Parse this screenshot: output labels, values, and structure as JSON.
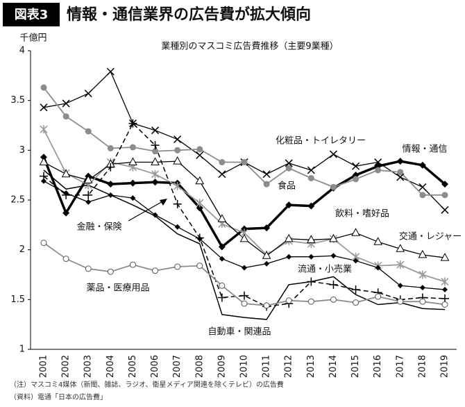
{
  "chart_data": {
    "type": "line",
    "figure_label": "図表3",
    "title": "情報・通信業界の広告費が拡大傾向",
    "subtitle": "業種別のマスコミ広告費推移（主要9業種）",
    "y_label": "千億円",
    "notes": [
      "（注）マスコミ4媒体（新聞、雑誌、ラジオ、衛星メディア関連を除くテレビ）の広告費",
      "（資料）電通「日本の広告費」"
    ],
    "categories": [
      "2001",
      "2002",
      "2003",
      "2004",
      "2005",
      "2006",
      "2007",
      "2008",
      "2009",
      "2010",
      "2011",
      "2012",
      "2013",
      "2014",
      "2015",
      "2016",
      "2017",
      "2018",
      "2019"
    ],
    "ylim": [
      1,
      4
    ],
    "yticks": [
      1,
      1.5,
      2,
      2.5,
      3,
      3.5,
      4
    ],
    "series": [
      {
        "name": "情報・通信",
        "color": "#000000",
        "marker": "diamond",
        "line_width": 3.5,
        "dashed": false,
        "values": [
          2.93,
          2.37,
          2.74,
          2.66,
          2.67,
          2.68,
          2.67,
          2.42,
          2.03,
          2.21,
          2.22,
          2.45,
          2.44,
          2.62,
          2.75,
          2.84,
          2.89,
          2.85,
          2.66
        ]
      },
      {
        "name": "化粧品・トイレタリー",
        "color": "#000000",
        "marker": "x",
        "line_width": 1.3,
        "dashed": false,
        "values": [
          3.43,
          3.47,
          3.57,
          3.79,
          3.27,
          3.2,
          3.11,
          2.95,
          2.76,
          2.88,
          2.76,
          2.87,
          2.8,
          2.96,
          2.84,
          2.88,
          2.73,
          2.63,
          2.4
        ]
      },
      {
        "name": "食品",
        "color": "#8c8c8c",
        "marker": "circle",
        "line_width": 1.8,
        "dashed": false,
        "values": [
          3.63,
          3.34,
          3.19,
          3.02,
          3.03,
          2.99,
          3.0,
          3.01,
          2.88,
          2.88,
          2.66,
          2.82,
          2.72,
          2.63,
          2.71,
          2.8,
          2.78,
          2.55,
          2.55
        ]
      },
      {
        "name": "飲料・嗜好品",
        "color": "#9a9a9a",
        "marker": "star",
        "line_width": 1.8,
        "dashed": false,
        "values": [
          3.21,
          2.77,
          2.65,
          2.88,
          2.83,
          2.76,
          2.64,
          2.47,
          2.26,
          2.17,
          1.95,
          2.09,
          2.06,
          2.11,
          1.93,
          1.84,
          1.85,
          1.75,
          1.68
        ]
      },
      {
        "name": "交通・レジャー",
        "color": "#000000",
        "marker": "triangle",
        "line_width": 1.3,
        "dashed": false,
        "values": [
          2.88,
          2.76,
          2.7,
          2.86,
          2.88,
          2.88,
          2.89,
          2.69,
          2.31,
          2.11,
          1.94,
          2.11,
          2.1,
          2.11,
          2.17,
          2.08,
          2.01,
          1.95,
          1.92
        ]
      },
      {
        "name": "金融・保険",
        "color": "#000000",
        "marker": "plus",
        "line_width": 1.5,
        "dashed": true,
        "values": [
          2.74,
          2.55,
          2.55,
          2.83,
          3.27,
          3.05,
          2.46,
          2.12,
          1.52,
          1.54,
          1.43,
          1.46,
          1.68,
          1.65,
          1.6,
          1.57,
          1.5,
          1.52,
          1.51
        ]
      },
      {
        "name": "流通・小売業",
        "color": "#000000",
        "marker": "small-diamond",
        "line_width": 1.3,
        "dashed": false,
        "values": [
          2.69,
          2.57,
          2.48,
          2.55,
          2.52,
          2.35,
          2.23,
          2.11,
          1.91,
          1.82,
          1.86,
          1.93,
          1.93,
          1.94,
          1.89,
          1.82,
          1.64,
          1.62,
          1.6
        ]
      },
      {
        "name": "自動車・関連品",
        "color": "#000000",
        "marker": "none",
        "line_width": 1.5,
        "dashed": false,
        "values": [
          2.8,
          2.61,
          2.65,
          2.55,
          2.45,
          2.34,
          2.16,
          2.06,
          1.35,
          1.32,
          1.3,
          1.65,
          1.68,
          1.73,
          1.55,
          1.45,
          1.47,
          1.41,
          1.4
        ]
      },
      {
        "name": "薬品・医療用品",
        "color": "#8c8c8c",
        "marker": "open-circle",
        "line_width": 1.8,
        "dashed": false,
        "values": [
          2.07,
          1.91,
          1.81,
          1.78,
          1.85,
          1.79,
          1.83,
          1.84,
          1.64,
          1.46,
          1.44,
          1.49,
          1.48,
          1.5,
          1.47,
          1.53,
          1.48,
          1.48,
          1.45
        ]
      }
    ]
  }
}
